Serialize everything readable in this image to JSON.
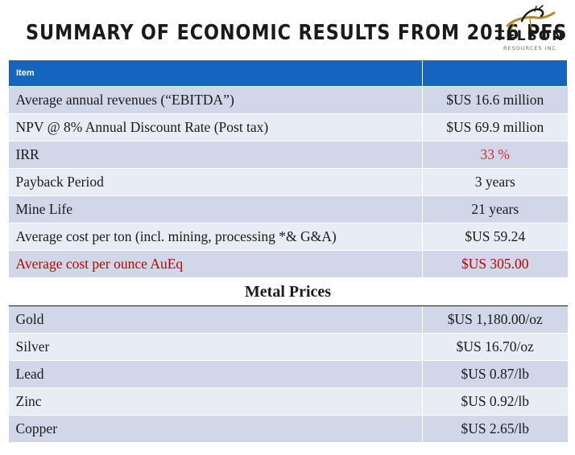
{
  "title": "SUMMARY OF ECONOMIC RESULTS FROM 2016 PFS",
  "logo": {
    "name": "TELSON",
    "sub": "RESOURCES INC"
  },
  "table": {
    "header": {
      "item": "Item",
      "value": ""
    },
    "rows": [
      {
        "label": "Average annual revenues (“EBITDA”)",
        "value": "$US 16.6 million"
      },
      {
        "label": "NPV @ 8% Annual Discount Rate (Post tax)",
        "value": "$US 69.9 million"
      },
      {
        "label": "IRR",
        "value": "33 %"
      },
      {
        "label": "Payback Period",
        "value": "3 years"
      },
      {
        "label": "Mine Life",
        "value": "21 years"
      },
      {
        "label": "Average cost per ton (incl. mining, processing *& G&A)",
        "value": "$US 59.24"
      },
      {
        "label": "Average cost per ounce AuEq",
        "value": "$US 305.00"
      }
    ],
    "metal_section": "Metal Prices",
    "metals": [
      {
        "label": "Gold",
        "value": "$US 1,180.00/oz"
      },
      {
        "label": "Silver",
        "value": "$US 16.70/oz"
      },
      {
        "label": "Lead",
        "value": "$US 0.87/lb"
      },
      {
        "label": "Zinc",
        "value": "$US 0.92/lb"
      },
      {
        "label": "Copper",
        "value": "$US 2.65/lb"
      }
    ]
  },
  "colors": {
    "header": "#1565c0",
    "row_dark": "#cfd7e9",
    "row_light": "#e8ecf4",
    "highlight": "#c00000"
  }
}
